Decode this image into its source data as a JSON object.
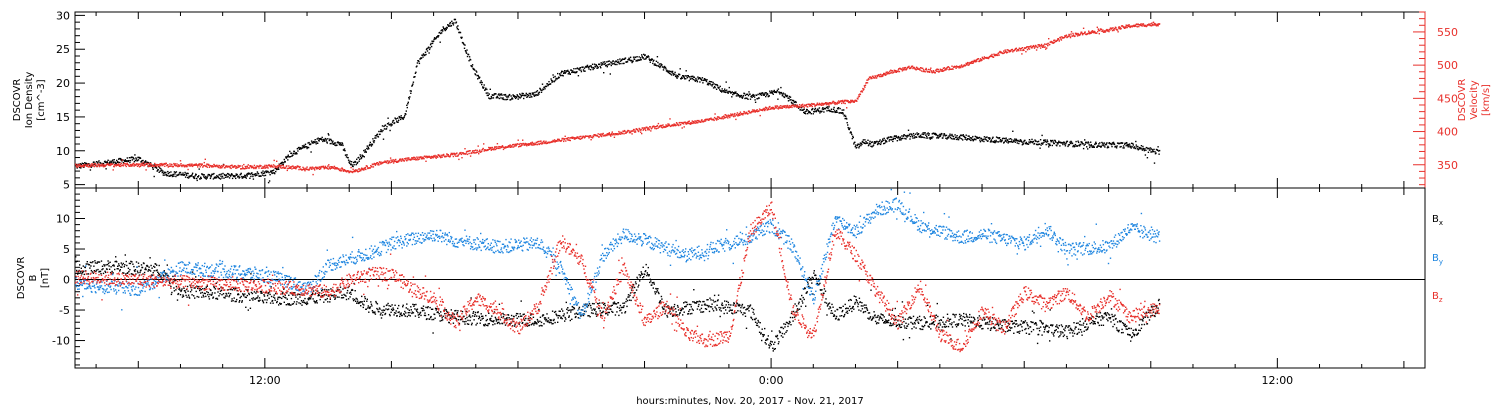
{
  "figure": {
    "xlabel": "hours:minutes, Nov. 20, 2017 - Nov. 21, 2017",
    "x_ticks": [
      {
        "t": 12,
        "label": "12:00"
      },
      {
        "t": 24,
        "label": "0:00"
      },
      {
        "t": 36,
        "label": "12:00"
      }
    ],
    "x_range": [
      7.5,
      39.5
    ]
  },
  "colors": {
    "black": "#000000",
    "red": "#e8302b",
    "blue": "#1f86e0"
  },
  "chart_data": [
    {
      "type": "line",
      "panel": "plasma",
      "ylabel_left": [
        "DSCOVR",
        "Ion Density",
        "[cm^-3]"
      ],
      "ylabel_right": [
        "DSCOVR",
        "Velocity",
        "[km/s]"
      ],
      "ylim_left": [
        4.5,
        30.5
      ],
      "ylim_right": [
        315,
        580
      ],
      "left_ticks": [
        5,
        10,
        15,
        20,
        25,
        30
      ],
      "right_ticks": [
        350,
        400,
        450,
        500,
        550
      ],
      "series": [
        {
          "axis": "left",
          "color": "black",
          "x": [
            7.5,
            9.0,
            9.6,
            10.5,
            11.5,
            12.2,
            12.6,
            13.3,
            13.8,
            14.0,
            14.1,
            14.8,
            15.3,
            15.6,
            16.2,
            16.5,
            16.9,
            17.3,
            17.8,
            18.4,
            19.0,
            20.0,
            21.0,
            21.8,
            22.4,
            23.0,
            23.6,
            24.2,
            24.8,
            25.4,
            25.7,
            26.0,
            26.2,
            26.4,
            26.8,
            27.5,
            28.5,
            29.5,
            30.5,
            31.5,
            32.5,
            33.2
          ],
          "y": [
            7.8,
            8.9,
            6.8,
            6.3,
            6.4,
            7.0,
            9.6,
            11.8,
            11.1,
            8.2,
            8.0,
            13.5,
            15.2,
            23.0,
            28.0,
            29.3,
            22.5,
            18.2,
            18.0,
            18.4,
            21.5,
            22.8,
            24.0,
            21.0,
            20.5,
            18.5,
            18.0,
            18.9,
            15.8,
            16.3,
            15.8,
            10.5,
            11.5,
            11.0,
            11.8,
            12.4,
            12.1,
            11.6,
            11.3,
            11.0,
            10.9,
            9.8
          ]
        },
        {
          "axis": "right",
          "color": "red",
          "x": [
            7.5,
            9.0,
            10.5,
            11.5,
            12.2,
            13.0,
            13.6,
            14.0,
            14.2,
            14.8,
            15.5,
            16.5,
            17.5,
            18.5,
            19.5,
            20.5,
            21.5,
            22.5,
            23.2,
            24.0,
            24.8,
            25.8,
            26.0,
            26.3,
            26.8,
            27.3,
            27.8,
            28.5,
            29.5,
            30.5,
            31.0,
            31.5,
            32.0,
            32.5,
            33.2
          ],
          "y": [
            350,
            351,
            350,
            347,
            349,
            345,
            347,
            341,
            343,
            355,
            360,
            366,
            377,
            384,
            392,
            400,
            410,
            418,
            427,
            437,
            440,
            446,
            447,
            480,
            490,
            498,
            491,
            500,
            521,
            531,
            545,
            550,
            554,
            560,
            563
          ]
        }
      ]
    },
    {
      "type": "scatter",
      "panel": "magnetic",
      "ylabel_left": [
        "DSCOVR",
        "B",
        "[nT]"
      ],
      "ylim": [
        -14.5,
        15
      ],
      "left_ticks": [
        -10,
        -5,
        0,
        5,
        10
      ],
      "legend": [
        {
          "label": "B",
          "sub": "x",
          "color": "black"
        },
        {
          "label": "B",
          "sub": "y",
          "color": "blue"
        },
        {
          "label": "B",
          "sub": "z",
          "color": "red"
        }
      ],
      "legend_placement": "right",
      "zero_line": true,
      "series": [
        {
          "name": "Bx",
          "color": "black",
          "x": [
            7.5,
            8.5,
            9.5,
            10.0,
            11.0,
            12.0,
            13.0,
            14.0,
            14.5,
            15.5,
            16.5,
            17.5,
            18.5,
            19.5,
            20.5,
            21.0,
            21.5,
            22.5,
            23.5,
            24.0,
            24.5,
            25.0,
            25.5,
            26.0,
            26.5,
            27.5,
            28.5,
            29.5,
            30.5,
            31.0,
            31.5,
            32.0,
            32.5,
            33.2
          ],
          "y": [
            2.0,
            2.2,
            1.6,
            -1.8,
            -2.2,
            -3.0,
            -3.0,
            -2.0,
            -4.5,
            -5.0,
            -6.0,
            -6.5,
            -6.5,
            -5.0,
            -4.5,
            2.0,
            -5.0,
            -4.0,
            -5.0,
            -11.0,
            -6.0,
            1.0,
            -6.0,
            -3.5,
            -6.5,
            -7.0,
            -6.5,
            -7.5,
            -8.0,
            -8.5,
            -7.0,
            -6.0,
            -9.0,
            -4.0
          ]
        },
        {
          "name": "By",
          "color": "blue",
          "x": [
            7.5,
            8.0,
            9.0,
            10.0,
            11.0,
            11.8,
            12.5,
            13.0,
            13.5,
            14.5,
            15.0,
            16.0,
            16.5,
            17.5,
            18.5,
            19.0,
            19.5,
            20.0,
            20.5,
            21.0,
            22.0,
            23.0,
            23.5,
            24.0,
            24.5,
            25.0,
            25.5,
            26.0,
            26.5,
            27.0,
            27.5,
            28.0,
            28.5,
            29.0,
            30.0,
            30.5,
            31.0,
            32.0,
            32.5,
            33.2
          ],
          "y": [
            -0.5,
            -1.0,
            -1.5,
            2.0,
            1.5,
            1.0,
            0.0,
            -1.5,
            2.5,
            4.5,
            6.0,
            7.5,
            6.5,
            5.5,
            6.0,
            2.0,
            -6.0,
            4.0,
            7.5,
            6.5,
            4.0,
            6.0,
            7.0,
            9.0,
            5.5,
            -3.0,
            10.0,
            8.0,
            11.5,
            12.5,
            9.0,
            8.0,
            7.0,
            7.5,
            6.0,
            8.5,
            5.0,
            5.5,
            8.5,
            7.0
          ]
        },
        {
          "name": "Bz",
          "color": "red",
          "x": [
            7.5,
            9.0,
            10.5,
            12.0,
            13.0,
            13.5,
            14.0,
            14.5,
            15.0,
            15.5,
            16.0,
            16.5,
            17.0,
            17.5,
            18.0,
            18.5,
            19.0,
            19.5,
            20.0,
            20.5,
            21.0,
            21.5,
            22.0,
            22.5,
            23.0,
            23.5,
            24.0,
            24.5,
            25.0,
            25.5,
            26.0,
            26.5,
            27.0,
            27.5,
            28.0,
            28.5,
            29.0,
            29.5,
            30.0,
            30.5,
            31.0,
            31.5,
            32.0,
            32.5,
            33.2
          ],
          "y": [
            0.5,
            0.0,
            -0.5,
            -1.0,
            -1.5,
            -2.0,
            0.0,
            1.0,
            1.0,
            -1.5,
            -3.0,
            -7.0,
            -3.0,
            -5.0,
            -8.0,
            -4.0,
            6.5,
            3.0,
            -6.0,
            2.0,
            -7.0,
            -4.0,
            -9.0,
            -10.0,
            -9.0,
            8.0,
            12.0,
            -5.0,
            -9.0,
            8.0,
            4.0,
            -2.0,
            -7.0,
            -1.0,
            -9.0,
            -11.0,
            -5.0,
            -8.0,
            -2.0,
            -4.0,
            -2.0,
            -6.0,
            -2.5,
            -6.0,
            -4.5
          ]
        }
      ]
    }
  ]
}
